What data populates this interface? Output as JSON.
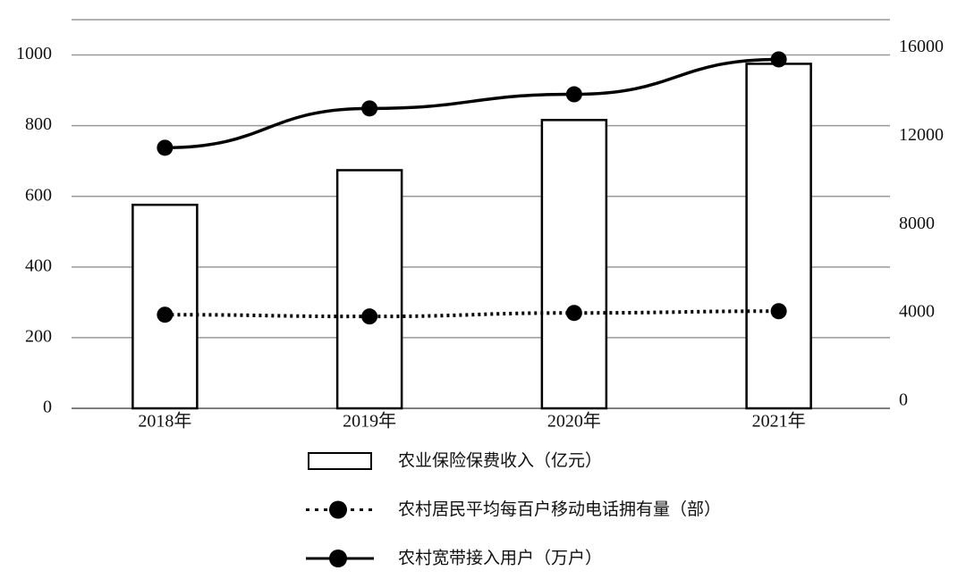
{
  "chart_data": {
    "type": "bar-line",
    "categories": [
      "2018年",
      "2019年",
      "2020年",
      "2021年"
    ],
    "series": [
      {
        "name": "农业保险保费收入（亿元）",
        "type": "bar",
        "color": "#000000",
        "values": [
          576,
          674,
          816,
          975
        ]
      },
      {
        "name": "农村居民平均每百户移动电话拥有量（部）",
        "type": "dotted-line",
        "color": "#000000",
        "values": [
          265,
          260,
          270,
          275
        ]
      },
      {
        "name": "农村宽带接入用户（万户）",
        "type": "line",
        "color": "#000000",
        "axis": "y2",
        "values": [
          11800,
          13580,
          14220,
          15800
        ]
      }
    ],
    "ylim": [
      0,
      1100
    ],
    "yticks": [
      0,
      200,
      400,
      600,
      800,
      1000
    ],
    "y2lim": [
      0,
      17600
    ],
    "y2ticks": [
      0,
      4000,
      8000,
      12000,
      16000
    ],
    "grid": true
  }
}
